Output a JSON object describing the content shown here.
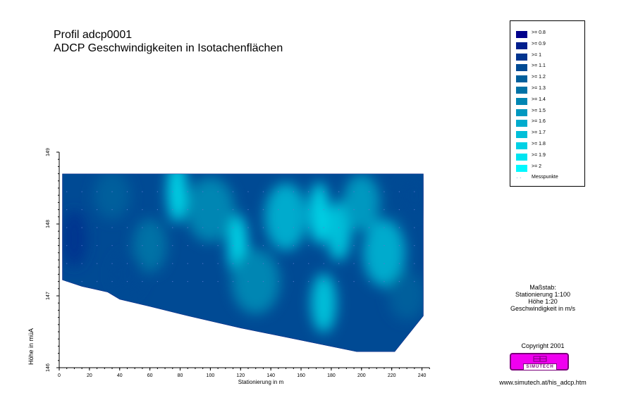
{
  "title": {
    "line1": "Profil adcp0001",
    "line2": "ADCP Geschwindigkeiten in Isotachenflächen"
  },
  "chart_data": {
    "type": "heatmap",
    "xlabel": "Stationierung in m",
    "ylabel": "Höhe in müA",
    "xlim": [
      0,
      245
    ],
    "ylim": [
      146,
      149
    ],
    "xticks": [
      "0",
      "20",
      "40",
      "60",
      "80",
      "100",
      "120",
      "140",
      "160",
      "180",
      "200",
      "220",
      "240"
    ],
    "yticks": [
      "146",
      "147",
      "148",
      "149"
    ],
    "water_surface": 148.7,
    "bed_profile": [
      {
        "x": 2,
        "y": 147.22
      },
      {
        "x": 15,
        "y": 147.13
      },
      {
        "x": 32,
        "y": 147.05
      },
      {
        "x": 40,
        "y": 146.95
      },
      {
        "x": 60,
        "y": 146.85
      },
      {
        "x": 85,
        "y": 146.72
      },
      {
        "x": 120,
        "y": 146.55
      },
      {
        "x": 160,
        "y": 146.38
      },
      {
        "x": 197,
        "y": 146.22
      },
      {
        "x": 222,
        "y": 146.22
      },
      {
        "x": 241,
        "y": 146.72
      }
    ],
    "velocity_levels": [
      0.8,
      0.9,
      1.0,
      1.1,
      1.2,
      1.3,
      1.4,
      1.5,
      1.6,
      1.7,
      1.8,
      1.9,
      2.0
    ],
    "level_colors": [
      "#00008b",
      "#001e8c",
      "#00348f",
      "#004a94",
      "#005f9c",
      "#0072a6",
      "#0086b3",
      "#0098c0",
      "#00abcd",
      "#00bfd9",
      "#00d1e5",
      "#00e4f0",
      "#00f8ff"
    ],
    "zones": [
      {
        "x": 78,
        "y": 148.45,
        "level": 2.0
      },
      {
        "x": 78,
        "y": 148.45,
        "level": 1.8
      },
      {
        "x": 118,
        "y": 147.7,
        "level": 1.8
      },
      {
        "x": 172,
        "y": 148.15,
        "level": 1.8
      },
      {
        "x": 185,
        "y": 147.9,
        "level": 1.7
      },
      {
        "x": 150,
        "y": 148.1,
        "level": 1.6
      },
      {
        "x": 175,
        "y": 146.9,
        "level": 1.7
      },
      {
        "x": 215,
        "y": 147.6,
        "level": 1.6
      },
      {
        "x": 200,
        "y": 148.3,
        "level": 1.5
      },
      {
        "x": 100,
        "y": 148.2,
        "level": 1.4
      },
      {
        "x": 130,
        "y": 147.2,
        "level": 1.4
      },
      {
        "x": 60,
        "y": 147.7,
        "level": 1.3
      },
      {
        "x": 35,
        "y": 148.4,
        "level": 1.2
      },
      {
        "x": 230,
        "y": 147.0,
        "level": 1.2
      },
      {
        "x": 10,
        "y": 147.8,
        "level": 1.0
      },
      {
        "x": 45,
        "y": 147.3,
        "level": 1.1
      },
      {
        "x": 235,
        "y": 148.4,
        "level": 1.1
      }
    ]
  },
  "legend": {
    "items": [
      {
        "label": ">= 0.8",
        "color": "#00008b"
      },
      {
        "label": ">= 0.9",
        "color": "#001e8c"
      },
      {
        "label": ">= 1",
        "color": "#00348f"
      },
      {
        "label": ">= 1.1",
        "color": "#004a94"
      },
      {
        "label": ">= 1.2",
        "color": "#005f9c"
      },
      {
        "label": ">= 1.3",
        "color": "#0072a6"
      },
      {
        "label": ">= 1.4",
        "color": "#0086b3"
      },
      {
        "label": ">= 1.5",
        "color": "#0098c0"
      },
      {
        "label": ">= 1.6",
        "color": "#00abcd"
      },
      {
        "label": ">= 1.7",
        "color": "#00bfd9"
      },
      {
        "label": ">= 1.8",
        "color": "#00d1e5"
      },
      {
        "label": ">= 1.9",
        "color": "#00e4f0"
      },
      {
        "label": ">= 2",
        "color": "#00f8ff"
      }
    ],
    "points_label": "Messpunkte"
  },
  "scale": {
    "heading": "Maßstab:",
    "station": "Stationierung 1:100",
    "height": "Höhe 1:20",
    "velocity": "Geschwindigkeit in m/s"
  },
  "copyright": "Copyright 2001",
  "logo_text": "SIMUTECH",
  "url": "www.simutech.at/his_adcp.htm"
}
